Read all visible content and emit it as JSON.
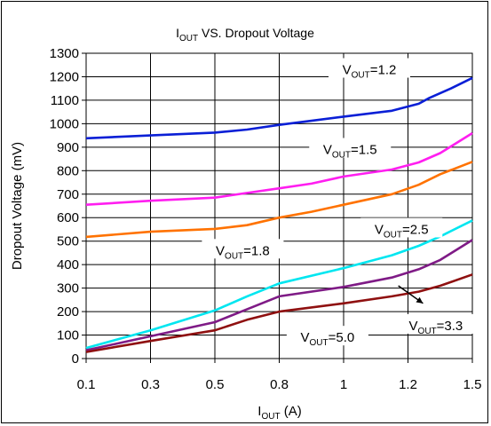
{
  "chart_data": {
    "type": "line",
    "title": {
      "main": "I",
      "sub": "OUT",
      "rest": " VS. Dropout Voltage"
    },
    "xlabel": {
      "main": "I",
      "sub": "OUT",
      "rest": " (A)"
    },
    "ylabel": "Dropout Voltage (mV)",
    "x_ticks": [
      "0.1",
      "0.3",
      "0.5",
      "0.8",
      "1",
      "1.2",
      "1.5"
    ],
    "y_ticks": [
      0,
      100,
      200,
      300,
      400,
      500,
      600,
      700,
      800,
      900,
      1000,
      1100,
      1200,
      1300
    ],
    "xlim": [
      0.1,
      1.5
    ],
    "ylim": [
      0,
      1300
    ],
    "grid": true,
    "series": [
      {
        "name": "1.2",
        "color": "#0a1fd6",
        "x": [
          0.1,
          0.3,
          0.5,
          0.65,
          0.8,
          1.0,
          1.15,
          1.25,
          1.3,
          1.4,
          1.5
        ],
        "values": [
          938,
          950,
          962,
          975,
          995,
          1030,
          1055,
          1085,
          1110,
          1150,
          1195
        ]
      },
      {
        "name": "1.5",
        "color": "#ff1ef0",
        "x": [
          0.1,
          0.3,
          0.5,
          0.65,
          0.8,
          0.9,
          1.0,
          1.15,
          1.25,
          1.35,
          1.5
        ],
        "values": [
          655,
          672,
          685,
          705,
          725,
          745,
          775,
          805,
          835,
          875,
          960
        ]
      },
      {
        "name": "1.8",
        "color": "#ff7200",
        "x": [
          0.1,
          0.3,
          0.5,
          0.65,
          0.8,
          0.9,
          1.0,
          1.15,
          1.25,
          1.35,
          1.5
        ],
        "values": [
          518,
          540,
          552,
          568,
          600,
          625,
          655,
          700,
          740,
          785,
          838
        ]
      },
      {
        "name": "2.5",
        "color": "#00e6f0",
        "x": [
          0.1,
          0.3,
          0.5,
          0.65,
          0.8,
          1.0,
          1.15,
          1.25,
          1.35,
          1.5
        ],
        "values": [
          45,
          120,
          205,
          265,
          320,
          385,
          440,
          480,
          520,
          588
        ]
      },
      {
        "name": "3.3",
        "color": "#7f1b86",
        "x": [
          0.1,
          0.3,
          0.5,
          0.65,
          0.8,
          1.0,
          1.15,
          1.25,
          1.35,
          1.5
        ],
        "values": [
          35,
          95,
          155,
          210,
          265,
          305,
          345,
          380,
          420,
          505
        ]
      },
      {
        "name": "5.0",
        "color": "#8f1010",
        "x": [
          0.1,
          0.3,
          0.5,
          0.65,
          0.8,
          1.0,
          1.15,
          1.25,
          1.35,
          1.5
        ],
        "values": [
          28,
          75,
          120,
          165,
          200,
          235,
          265,
          285,
          310,
          358
        ]
      }
    ],
    "annotations": [
      {
        "series": "1.2",
        "label": "V",
        "sub": "OUT",
        "text": "=1.2"
      },
      {
        "series": "1.5",
        "label": "V",
        "sub": "OUT",
        "text": "=1.5"
      },
      {
        "series": "1.8",
        "label": "V",
        "sub": "OUT",
        "text": "=1.8"
      },
      {
        "series": "2.5",
        "label": "V",
        "sub": "OUT",
        "text": "=2.5"
      },
      {
        "series": "3.3",
        "label": "V",
        "sub": "OUT",
        "text": "=3.3"
      },
      {
        "series": "5.0",
        "label": "V",
        "sub": "OUT",
        "text": "=5.0"
      }
    ]
  }
}
